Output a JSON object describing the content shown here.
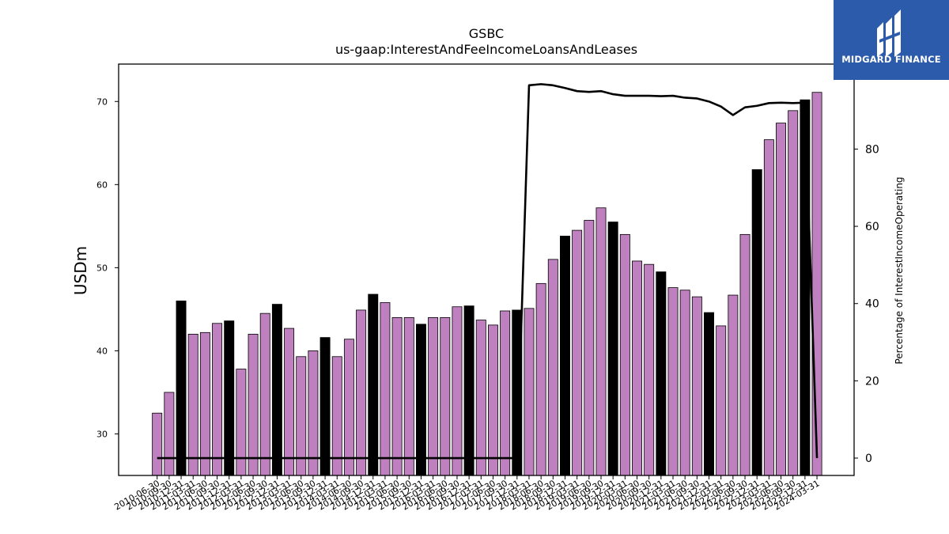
{
  "brand": {
    "name": "MIDGARD FINANCE",
    "color": "#2d5bab"
  },
  "chart_data": {
    "type": "bar",
    "title": "GSBC",
    "subtitle": "us-gaap:InterestAndFeeIncomeLoansAndLeases",
    "ylabel": "USDm",
    "y2label": "Percentage of InterestIncomeOperating",
    "ylim": [
      25.0,
      74.5
    ],
    "y2lim": [
      -4.5,
      102
    ],
    "yticks": [
      30,
      40,
      50,
      60,
      70
    ],
    "y2ticks": [
      0,
      20,
      40,
      60,
      80
    ],
    "colors": {
      "quarter_bar": "#bf80bf",
      "q4_bar": "#000000",
      "line": "#000000"
    },
    "categories": [
      "2010-06-30",
      "2010-09-30",
      "2010-12-31",
      "2011-03-31",
      "2011-06-30",
      "2011-09-30",
      "2011-12-31",
      "2012-03-31",
      "2012-06-30",
      "2012-09-30",
      "2012-12-31",
      "2013-03-31",
      "2013-06-30",
      "2013-09-30",
      "2013-12-31",
      "2014-03-31",
      "2014-06-30",
      "2014-09-30",
      "2014-12-31",
      "2015-03-31",
      "2015-06-30",
      "2015-09-30",
      "2015-12-31",
      "2016-03-31",
      "2016-06-30",
      "2016-09-30",
      "2016-12-31",
      "2017-03-31",
      "2017-06-30",
      "2017-09-30",
      "2017-12-31",
      "2018-03-31",
      "2018-06-30",
      "2018-09-30",
      "2018-12-31",
      "2019-03-31",
      "2019-06-30",
      "2019-09-30",
      "2019-12-31",
      "2020-03-31",
      "2020-06-30",
      "2020-09-30",
      "2020-12-31",
      "2021-03-31",
      "2021-06-30",
      "2021-09-30",
      "2021-12-31",
      "2022-03-31",
      "2022-06-30",
      "2022-09-30",
      "2022-12-31",
      "2023-03-31",
      "2023-06-30",
      "2023-09-30",
      "2023-12-31",
      "2024-03-31"
    ],
    "series": [
      {
        "kind": "bar",
        "axis": "left",
        "values": [
          32.5,
          35.0,
          46.0,
          42.0,
          42.2,
          43.3,
          43.6,
          37.8,
          42.0,
          44.5,
          45.6,
          42.7,
          39.3,
          40.0,
          41.6,
          39.3,
          41.4,
          44.9,
          46.8,
          45.8,
          44.0,
          44.0,
          43.2,
          44.0,
          44.0,
          45.3,
          45.4,
          43.7,
          43.1,
          44.8,
          44.9,
          45.1,
          48.1,
          51.0,
          53.8,
          54.5,
          55.7,
          57.2,
          55.5,
          54.0,
          50.8,
          50.4,
          49.5,
          47.6,
          47.3,
          46.5,
          44.6,
          43.0,
          46.7,
          54.0,
          61.8,
          65.4,
          67.4,
          68.9,
          70.2,
          71.1
        ],
        "q4_highlight": [
          false,
          false,
          true,
          false,
          false,
          false,
          true,
          false,
          false,
          false,
          true,
          false,
          false,
          false,
          true,
          false,
          false,
          false,
          true,
          false,
          false,
          false,
          true,
          false,
          false,
          false,
          true,
          false,
          false,
          false,
          true,
          false,
          false,
          false,
          true,
          false,
          false,
          false,
          true,
          false,
          false,
          false,
          true,
          false,
          false,
          false,
          true,
          false,
          false,
          false,
          true,
          false,
          false,
          false,
          true,
          false
        ]
      },
      {
        "kind": "line",
        "axis": "right",
        "values": [
          0,
          0,
          0,
          0,
          0,
          0,
          0,
          0,
          0,
          0,
          0,
          0,
          0,
          0,
          0,
          0,
          0,
          0,
          0,
          0,
          0,
          0,
          0,
          0,
          0,
          0,
          0,
          0,
          0,
          0,
          0,
          96.5,
          96.8,
          96.5,
          95.8,
          95.0,
          94.8,
          95.0,
          94.2,
          93.8,
          93.8,
          93.8,
          93.7,
          93.8,
          93.3,
          93.1,
          92.3,
          91.0,
          88.8,
          90.8,
          91.2,
          91.9,
          92.0,
          91.9,
          92.0,
          0
        ]
      }
    ]
  }
}
